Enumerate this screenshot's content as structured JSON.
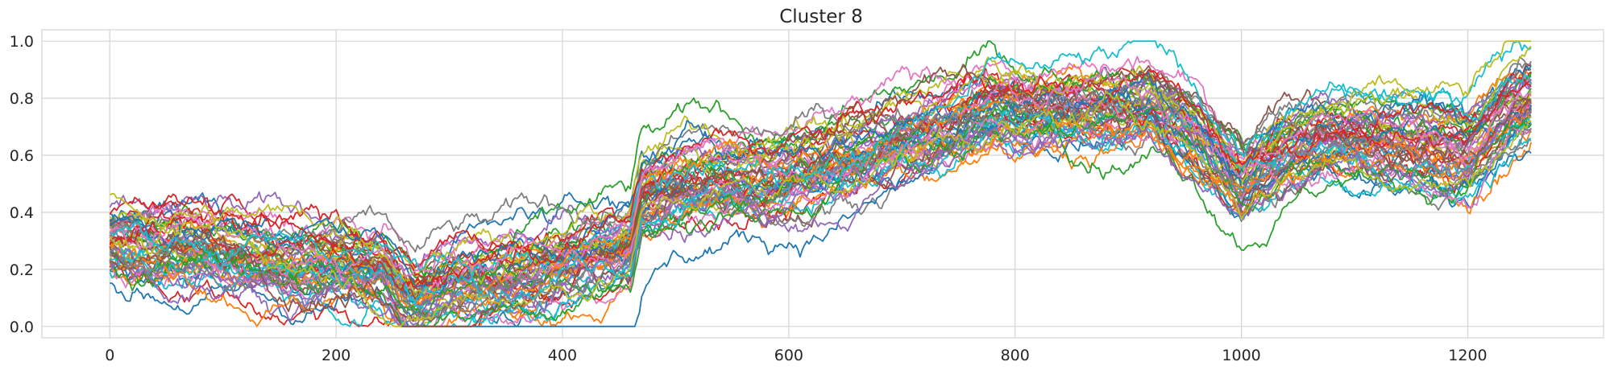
{
  "chart_data": {
    "type": "line",
    "title": "Cluster 8",
    "xlabel": "",
    "ylabel": "",
    "xlim": [
      -60,
      1320
    ],
    "ylim": [
      -0.04,
      1.04
    ],
    "x_ticks": [
      0,
      200,
      400,
      600,
      800,
      1000,
      1200
    ],
    "y_ticks": [
      0.0,
      0.2,
      0.4,
      0.6,
      0.8,
      1.0
    ],
    "x_tick_labels": [
      "0",
      "200",
      "400",
      "600",
      "800",
      "1000",
      "1200"
    ],
    "y_tick_labels": [
      "0.0",
      "0.2",
      "0.4",
      "0.6",
      "0.8",
      "1.0"
    ],
    "grid": true,
    "legend": "none",
    "n_points": 1258,
    "series_count": 60,
    "palette": [
      "#1f77b4",
      "#ff7f0e",
      "#2ca02c",
      "#d62728",
      "#9467bd",
      "#8c564b",
      "#e377c2",
      "#7f7f7f",
      "#bcbd22",
      "#17becf"
    ],
    "mean_profile": {
      "x": [
        0,
        40,
        80,
        120,
        160,
        200,
        240,
        270,
        300,
        340,
        380,
        420,
        460,
        470,
        500,
        540,
        580,
        620,
        660,
        700,
        740,
        780,
        800,
        840,
        880,
        920,
        960,
        1000,
        1040,
        1080,
        1120,
        1160,
        1200,
        1240,
        1258
      ],
      "y": [
        0.33,
        0.31,
        0.31,
        0.28,
        0.25,
        0.27,
        0.24,
        0.13,
        0.19,
        0.21,
        0.24,
        0.29,
        0.33,
        0.5,
        0.54,
        0.57,
        0.56,
        0.6,
        0.64,
        0.7,
        0.75,
        0.82,
        0.8,
        0.8,
        0.8,
        0.83,
        0.72,
        0.55,
        0.66,
        0.72,
        0.7,
        0.68,
        0.65,
        0.82,
        0.85
      ]
    },
    "spread": 0.1,
    "volatility": 0.018
  }
}
